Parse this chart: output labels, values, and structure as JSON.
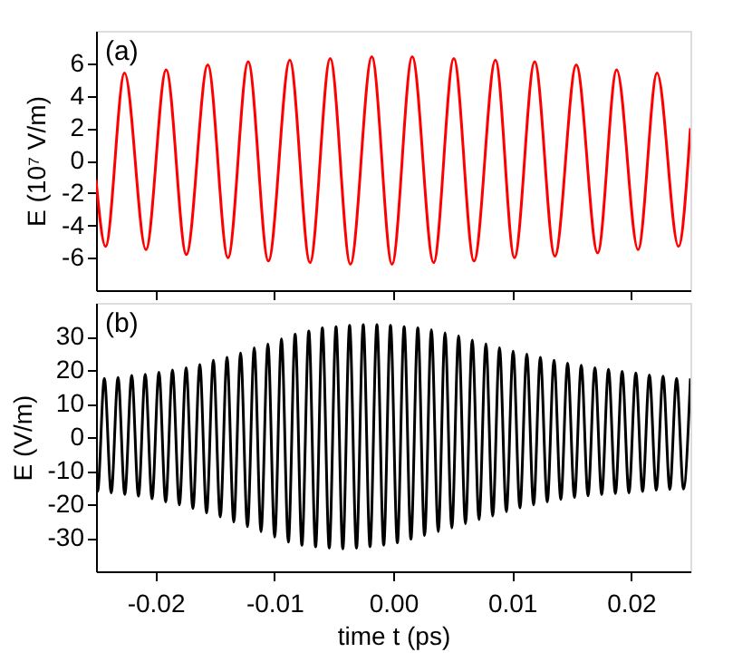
{
  "chart_data": [
    {
      "type": "line",
      "ylabel": "E (10⁷ V/m)",
      "annotations": [
        "(a)"
      ],
      "tick_labels": "y",
      "grid": false,
      "xlim": [
        -0.025,
        0.025
      ],
      "xticks": [
        -0.02,
        -0.01,
        0,
        0.01,
        0.02
      ],
      "ylim": [
        -8,
        8
      ],
      "yticks": [
        -6,
        -4,
        -2,
        0,
        2,
        4,
        6
      ],
      "series": [
        {
          "color": "#ff0000",
          "x": [
            -0.025,
            -0.0242,
            -0.0226,
            -0.0208,
            -0.0191,
            -0.0174,
            -0.0156,
            -0.0139,
            -0.0122,
            -0.0105,
            -0.0087,
            -0.007,
            -0.0053,
            -0.0036,
            -0.0018,
            -0.0001,
            0.0016,
            0.0034,
            0.0051,
            0.0068,
            0.0086,
            0.0102,
            0.0119,
            0.0136,
            0.0154,
            0.0172,
            0.0188,
            0.0206,
            0.0222,
            0.024,
            0.025
          ],
          "values": [
            -1.2,
            -5.3,
            5.4,
            -5.5,
            5.6,
            -5.8,
            5.9,
            -6.0,
            6.1,
            -6.2,
            6.2,
            -6.3,
            6.3,
            -6.4,
            6.4,
            -6.4,
            6.4,
            -6.3,
            6.3,
            -6.2,
            6.2,
            -6.0,
            6.1,
            -5.9,
            5.9,
            -5.7,
            5.6,
            -5.5,
            5.4,
            -5.3,
            2.0
          ]
        }
      ]
    },
    {
      "type": "line",
      "xlabel": "time t (ps)",
      "ylabel": "E (V/m)",
      "annotations": [
        "(b)"
      ],
      "grid": false,
      "xlim": [
        -0.025,
        0.025
      ],
      "xticks": [
        -0.02,
        -0.01,
        {
          "value": 0,
          "label": "0.00"
        },
        0.01,
        0.02
      ],
      "ylim": [
        -40,
        40
      ],
      "yticks": [
        -30,
        -20,
        -10,
        0,
        10,
        20,
        30
      ],
      "series": [
        {
          "color": "#000000",
          "x": [
            -0.025,
            -0.02487,
            -0.0243,
            -0.02372,
            -0.02315,
            -0.02258,
            -0.022,
            -0.02143,
            -0.02086,
            -0.02029,
            -0.01971,
            -0.01914,
            -0.01857,
            -0.01799,
            -0.01742,
            -0.01685,
            -0.01627,
            -0.0157,
            -0.01513,
            -0.01455,
            -0.01398,
            -0.01341,
            -0.01284,
            -0.01226,
            -0.01169,
            -0.01112,
            -0.01054,
            -0.00997,
            -0.0094,
            -0.00882,
            -0.00825,
            -0.00768,
            -0.0071,
            -0.00653,
            -0.00596,
            -0.00538,
            -0.00481,
            -0.00424,
            -0.00367,
            -0.00309,
            -0.00252,
            -0.00195,
            -0.00137,
            -0.0008,
            -0.00023,
            0.00035,
            0.00092,
            0.00149,
            0.00207,
            0.00264,
            0.00321,
            0.00379,
            0.00436,
            0.00493,
            0.0055,
            0.00608,
            0.00665,
            0.00722,
            0.0078,
            0.00837,
            0.00894,
            0.00952,
            0.01009,
            0.01066,
            0.01124,
            0.01181,
            0.01238,
            0.01296,
            0.01353,
            0.0141,
            0.01467,
            0.01525,
            0.01582,
            0.01639,
            0.01697,
            0.01754,
            0.01811,
            0.01869,
            0.01926,
            0.01983,
            0.02041,
            0.02098,
            0.02155,
            0.02213,
            0.0227,
            0.02327,
            0.02384,
            0.02442,
            0.025
          ],
          "values": [
            -15.5,
            -16.2,
            17.5,
            -16.6,
            17.8,
            -17.1,
            18.4,
            -17.6,
            18.7,
            -18.4,
            19.3,
            -19.3,
            20.0,
            -20.2,
            20.7,
            -21.3,
            21.6,
            -22.6,
            22.9,
            -23.8,
            23.8,
            -25.3,
            25.1,
            -26.7,
            26.6,
            -28.2,
            27.8,
            -29.8,
            29.3,
            -31.3,
            30.7,
            -32.2,
            31.6,
            -32.7,
            32.6,
            -33.1,
            32.9,
            -33.3,
            33.3,
            -33.1,
            33.5,
            -32.7,
            33.5,
            -32.2,
            33.3,
            -31.5,
            32.9,
            -30.4,
            32.6,
            -29.3,
            32.0,
            -28.2,
            31.1,
            -27.1,
            30.2,
            -25.8,
            28.9,
            -24.6,
            27.8,
            -23.5,
            26.6,
            -22.2,
            25.6,
            -21.1,
            24.7,
            -20.2,
            23.8,
            -19.3,
            22.9,
            -18.6,
            22.0,
            -18.0,
            21.4,
            -17.5,
            20.7,
            -17.1,
            20.2,
            -16.8,
            19.6,
            -16.6,
            19.1,
            -16.2,
            18.5,
            -15.8,
            18.2,
            -15.6,
            17.5,
            -15.5,
            17.5
          ]
        }
      ]
    }
  ]
}
